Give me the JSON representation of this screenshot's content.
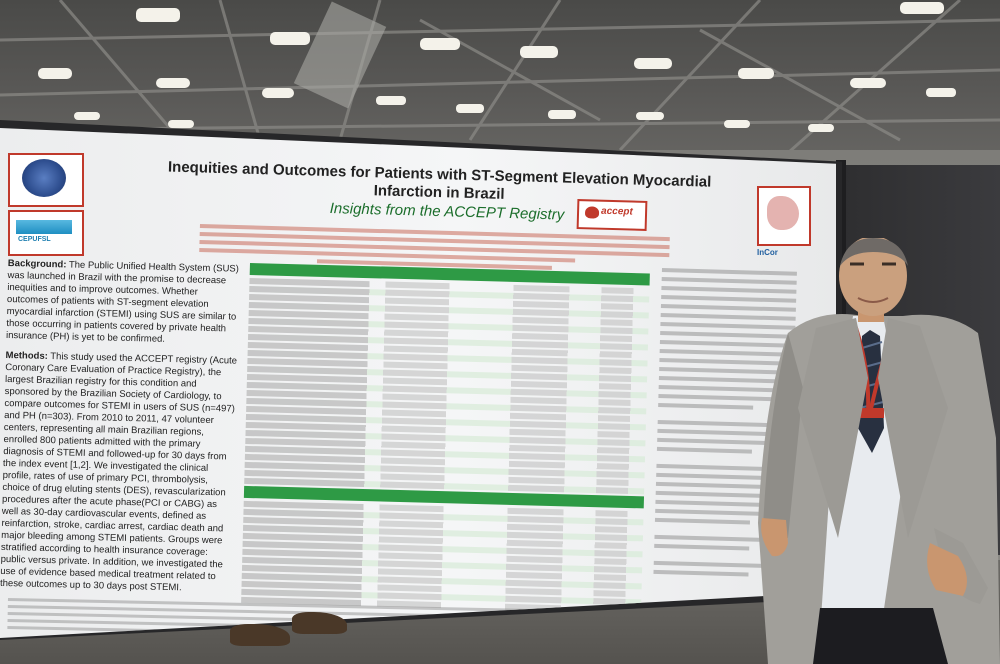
{
  "poster": {
    "title": "Inequities and Outcomes for Patients with ST-Segment Elevation Myocardial Infarction in Brazil",
    "subtitle": "Insights from the ACCEPT Registry",
    "accept_logo": "accept",
    "institution_logo": "InCor",
    "logo_left_bottom": "CEPUFSL",
    "sections": {
      "background_heading": "Background:",
      "background_text": "The Public Unified Health System (SUS) was launched in Brazil with the promise to decrease inequities and to improve outcomes. Whether outcomes of patients with ST-segment elevation myocardial infarction (STEMI) using SUS are similar to those occurring in patients covered by private health insurance (PH) is yet to be confirmed.",
      "methods_heading": "Methods:",
      "methods_text": "This study used the ACCEPT registry (Acute Coronary Care Evaluation of Practice Registry), the largest Brazilian registry for this condition and sponsored by the Brazilian Society of Cardiology, to compare outcomes for STEMI in users of SUS (n=497) and PH (n=303). From 2010 to 2011, 47 volunteer centers, representing all main Brazilian regions, enrolled 800 patients admitted with the primary diagnosis of STEMI and followed-up for 30 days from the index event [1,2]. We investigated the clinical profile, rates of use of primary PCI, thrombolysis, choice of drug eluting stents (DES), revascularization procedures after the acute phase(PCI or CABG) as well as 30-day cardiovascular events, defined as reinfarction, stroke, cardiac arrest, cardiac death and major bleeding among STEMI patients. Groups were stratified according to health insurance coverage: public versus private. In addition, we investigated the use of evidence based medical treatment related to these outcomes up to 30 days post STEMI."
    }
  }
}
